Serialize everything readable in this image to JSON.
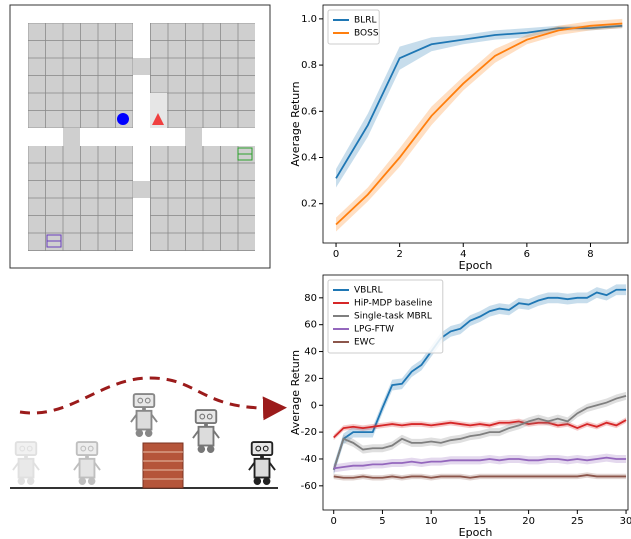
{
  "chart_data": [
    {
      "type": "line",
      "x": [
        0,
        1,
        2,
        3,
        4,
        5,
        6,
        7,
        8,
        9
      ],
      "xlabel": "Epoch",
      "ylabel": "Average Return",
      "xlim": [
        -0.41,
        9.18
      ],
      "ylim": [
        0.03,
        1.06
      ],
      "xticks": [
        0,
        2,
        4,
        6,
        8
      ],
      "yticks": [
        0.2,
        0.4,
        0.6,
        0.8,
        {
          "value": 1,
          "label": "1.0"
        }
      ],
      "legend": "upper-left",
      "series": [
        {
          "name": "BLRL",
          "color": "#1f77b4",
          "values": [
            0.31,
            0.54,
            0.83,
            0.89,
            0.91,
            0.93,
            0.94,
            0.96,
            0.96,
            0.97
          ],
          "std": [
            0.04,
            0.05,
            0.05,
            0.03,
            0.02,
            0.02,
            0.02,
            0.01,
            0.01,
            0.01
          ]
        },
        {
          "name": "BOSS",
          "color": "#ff7f0e",
          "values": [
            0.11,
            0.24,
            0.4,
            0.58,
            0.72,
            0.84,
            0.91,
            0.95,
            0.97,
            0.98
          ],
          "std": [
            0.03,
            0.03,
            0.04,
            0.04,
            0.03,
            0.03,
            0.02,
            0.02,
            0.02,
            0.02
          ]
        }
      ]
    },
    {
      "type": "line",
      "x": [
        0,
        1,
        2,
        3,
        4,
        5,
        6,
        7,
        8,
        9,
        10,
        11,
        12,
        13,
        14,
        15,
        16,
        17,
        18,
        19,
        20,
        21,
        22,
        23,
        24,
        25,
        26,
        27,
        28,
        29,
        30
      ],
      "xlabel": "Epoch",
      "ylabel": "Average Return",
      "xlim": [
        -1.1,
        30.2
      ],
      "ylim": [
        -78,
        97
      ],
      "xticks": [
        0,
        5,
        10,
        15,
        20,
        25,
        30
      ],
      "yticks": [
        -60,
        -40,
        -20,
        0,
        20,
        40,
        60,
        80
      ],
      "legend": "upper-left",
      "series": [
        {
          "name": "VBLRL",
          "color": "#1f77b4",
          "values": [
            -48,
            -25,
            -20,
            -20,
            -20,
            -2,
            15,
            16,
            25,
            30,
            40,
            50,
            55,
            57,
            63,
            66,
            70,
            72,
            71,
            76,
            75,
            78,
            80,
            80,
            79,
            80,
            80,
            84,
            82,
            86,
            86
          ],
          "std": 4
        },
        {
          "name": "HiP-MDP baseline",
          "color": "#d62728",
          "values": [
            -24,
            -17,
            -16,
            -17,
            -16,
            -15,
            -14,
            -15,
            -14,
            -14,
            -15,
            -14,
            -13,
            -14,
            -15,
            -14,
            -15,
            -13,
            -13,
            -12,
            -14,
            -13,
            -13,
            -15,
            -14,
            -17,
            -14,
            -16,
            -13,
            -15,
            -11
          ],
          "std": 2
        },
        {
          "name": "Single-task MBRL",
          "color": "#7f7f7f",
          "values": [
            -48,
            -25,
            -28,
            -33,
            -32,
            -32,
            -30,
            -25,
            -28,
            -28,
            -27,
            -28,
            -26,
            -25,
            -23,
            -22,
            -20,
            -20,
            -17,
            -15,
            -12,
            -10,
            -12,
            -10,
            -12,
            -6,
            -2,
            0,
            2,
            5,
            7
          ],
          "std": 3
        },
        {
          "name": "LPG-FTW",
          "color": "#9467bd",
          "values": [
            -47,
            -46,
            -45,
            -45,
            -44,
            -44,
            -43,
            -43,
            -42,
            -43,
            -42,
            -42,
            -41,
            -41,
            -41,
            -41,
            -40,
            -41,
            -40,
            -40,
            -41,
            -41,
            -40,
            -40,
            -41,
            -40,
            -41,
            -40,
            -39,
            -40,
            -40
          ],
          "std": 3
        },
        {
          "name": "EWC",
          "color": "#8c564b",
          "values": [
            -53,
            -54,
            -54,
            -53,
            -54,
            -54,
            -53,
            -54,
            -53,
            -53,
            -54,
            -53,
            -53,
            -53,
            -54,
            -53,
            -53,
            -53,
            -53,
            -53,
            -53,
            -53,
            -53,
            -53,
            -53,
            -53,
            -52,
            -53,
            -53,
            -53,
            -53
          ],
          "std": 2
        }
      ]
    }
  ]
}
